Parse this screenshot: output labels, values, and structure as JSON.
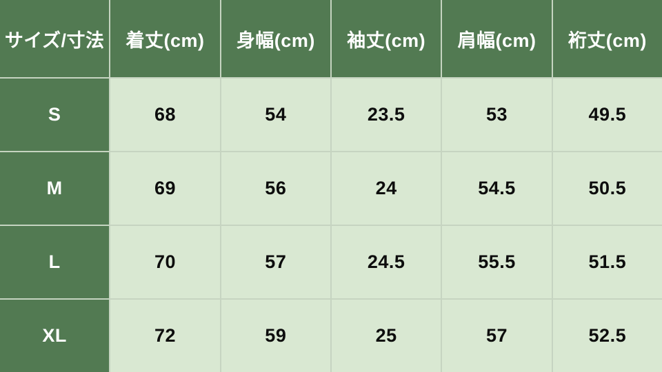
{
  "chart_data": {
    "type": "table",
    "title": "サイズ/寸法",
    "columns": [
      "サイズ/寸法",
      "着丈(cm)",
      "身幅(cm)",
      "袖丈(cm)",
      "肩幅(cm)",
      "裄丈(cm)"
    ],
    "rows": [
      [
        "S",
        "68",
        "54",
        "23.5",
        "53",
        "49.5"
      ],
      [
        "M",
        "69",
        "56",
        "24",
        "54.5",
        "50.5"
      ],
      [
        "L",
        "70",
        "57",
        "24.5",
        "55.5",
        "51.5"
      ],
      [
        "XL",
        "72",
        "59",
        "25",
        "57",
        "52.5"
      ]
    ]
  },
  "colors": {
    "header_bg": "#527a52",
    "body_bg": "#d9e8d2",
    "grid_line": "#c6d4c1",
    "header_text": "#ffffff",
    "body_text": "#0d0d0d"
  }
}
